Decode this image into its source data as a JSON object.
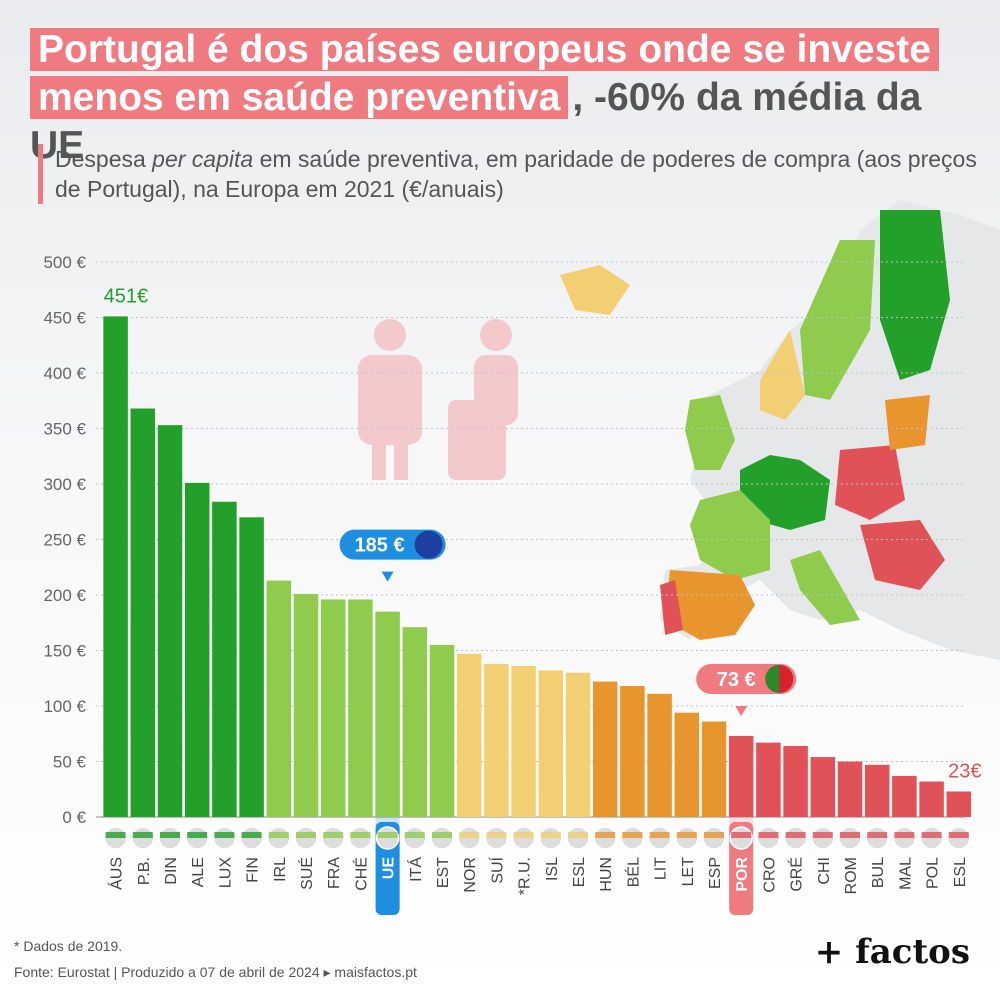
{
  "header": {
    "title_line1": "Portugal é dos países europeus onde se investe",
    "title_line2_highlight": "menos em saúde preventiva",
    "title_line2_rest": ", -60% da média da UE",
    "subtitle_pre": "Despesa ",
    "subtitle_italic": "per capita",
    "subtitle_post": " em saúde preventiva, em paridade de poderes de compra (aos preços de Portugal), na Europa em 2021 (€/anuais)"
  },
  "colors": {
    "dark_green": "#23a02a",
    "light_green": "#8fcc4d",
    "yellow": "#f2cf72",
    "orange": "#e8952e",
    "red": "#e05258",
    "ue_blue": "#1e8ee0",
    "por_pink": "#ef7a80"
  },
  "chart_data": {
    "type": "bar",
    "categories": [
      "ÁUS",
      "P.B.",
      "DIN",
      "ALE",
      "LUX",
      "FIN",
      "IRL",
      "SUÉ",
      "FRA",
      "CHÉ",
      "UE",
      "ITÁ",
      "EST",
      "NOR",
      "SUÍ",
      "*R.U.",
      "ISL",
      "ESL",
      "HUN",
      "BÉL",
      "LIT",
      "LET",
      "ESP",
      "POR",
      "CRO",
      "GRÉ",
      "CHI",
      "ROM",
      "BUL",
      "MAL",
      "POL",
      "ESL"
    ],
    "values": [
      451,
      368,
      353,
      301,
      284,
      270,
      213,
      201,
      196,
      196,
      185,
      171,
      155,
      147,
      138,
      136,
      132,
      130,
      122,
      118,
      111,
      94,
      86,
      73,
      67,
      64,
      54,
      50,
      47,
      37,
      32,
      23
    ],
    "color_groups": [
      "dark_green",
      "dark_green",
      "dark_green",
      "dark_green",
      "dark_green",
      "dark_green",
      "light_green",
      "light_green",
      "light_green",
      "light_green",
      "light_green",
      "light_green",
      "light_green",
      "yellow",
      "yellow",
      "yellow",
      "yellow",
      "yellow",
      "orange",
      "orange",
      "orange",
      "orange",
      "orange",
      "red",
      "red",
      "red",
      "red",
      "red",
      "red",
      "red",
      "red",
      "red"
    ],
    "ylim": [
      0,
      500
    ],
    "yticks": [
      0,
      50,
      100,
      150,
      200,
      250,
      300,
      350,
      400,
      450,
      500
    ],
    "ytick_labels": [
      "0 €",
      "50 €",
      "100 €",
      "150 €",
      "200 €",
      "250 €",
      "300 €",
      "350 €",
      "400 €",
      "450 €",
      "500 €"
    ],
    "xlabel": "",
    "ylabel": "",
    "grid": true,
    "annotations": [
      {
        "category": "ÁUS",
        "text": "451€"
      },
      {
        "category": "UE",
        "text": "185 €"
      },
      {
        "category": "POR",
        "text": "73 €"
      },
      {
        "category": "ESL",
        "index": 31,
        "text": "23€"
      }
    ],
    "highlight": [
      "UE",
      "POR"
    ]
  },
  "footer": {
    "note": "* Dados de 2019.",
    "source": "Fonte: Eurostat | Produzido a 07 de abril de 2024 ▸ maisfactos.pt",
    "logo": "+ factos"
  }
}
